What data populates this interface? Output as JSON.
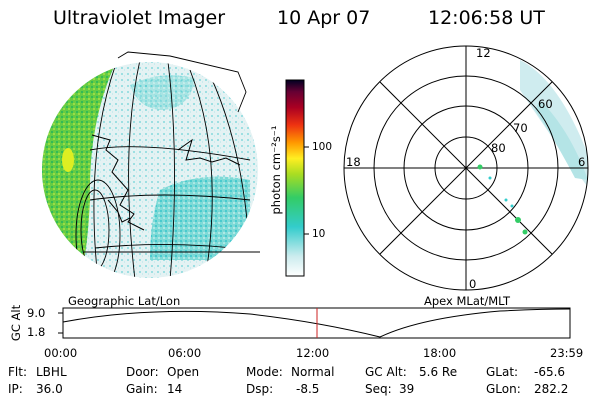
{
  "header": {
    "title": "Ultraviolet Imager",
    "date": "10 Apr 07",
    "time": "12:06:58 UT"
  },
  "colorbar": {
    "unit_label": "photon cm⁻²s⁻¹",
    "ticks": [
      "100",
      "10"
    ]
  },
  "panels": {
    "left_label": "Geographic Lat/Lon",
    "right_label": "Apex MLat/MLT"
  },
  "polar": {
    "mlt_labels": [
      "12",
      "18",
      "6",
      "0"
    ],
    "mlat_labels": [
      "60",
      "70",
      "80"
    ]
  },
  "altitude_plot": {
    "ylabel": "GC Alt",
    "yticks": [
      "9.0",
      "1.8"
    ],
    "xticks": [
      "00:00",
      "06:00",
      "12:00",
      "18:00",
      "23:59"
    ]
  },
  "info": {
    "flt_label": "Flt:",
    "flt_value": "LBHL",
    "ip_label": "IP:",
    "ip_value": "36.0",
    "door_label": "Door:",
    "door_value": "Open",
    "gain_label": "Gain:",
    "gain_value": "14",
    "mode_label": "Mode:",
    "mode_value": "Normal",
    "dsp_label": "Dsp:",
    "dsp_value": "-8.5",
    "gcalt_label": "GC Alt:",
    "gcalt_value": "5.6 Re",
    "seq_label": "Seq:",
    "seq_value": "39",
    "glat_label": "GLat:",
    "glat_value": "-65.6",
    "glon_label": "GLon:",
    "glon_value": "282.2"
  },
  "colors": {
    "background": "#ffffff",
    "emission_green": "#44cc44",
    "emission_cyan": "#22cccc",
    "emission_pale": "#d8eef0",
    "time_marker": "#cc2222"
  }
}
